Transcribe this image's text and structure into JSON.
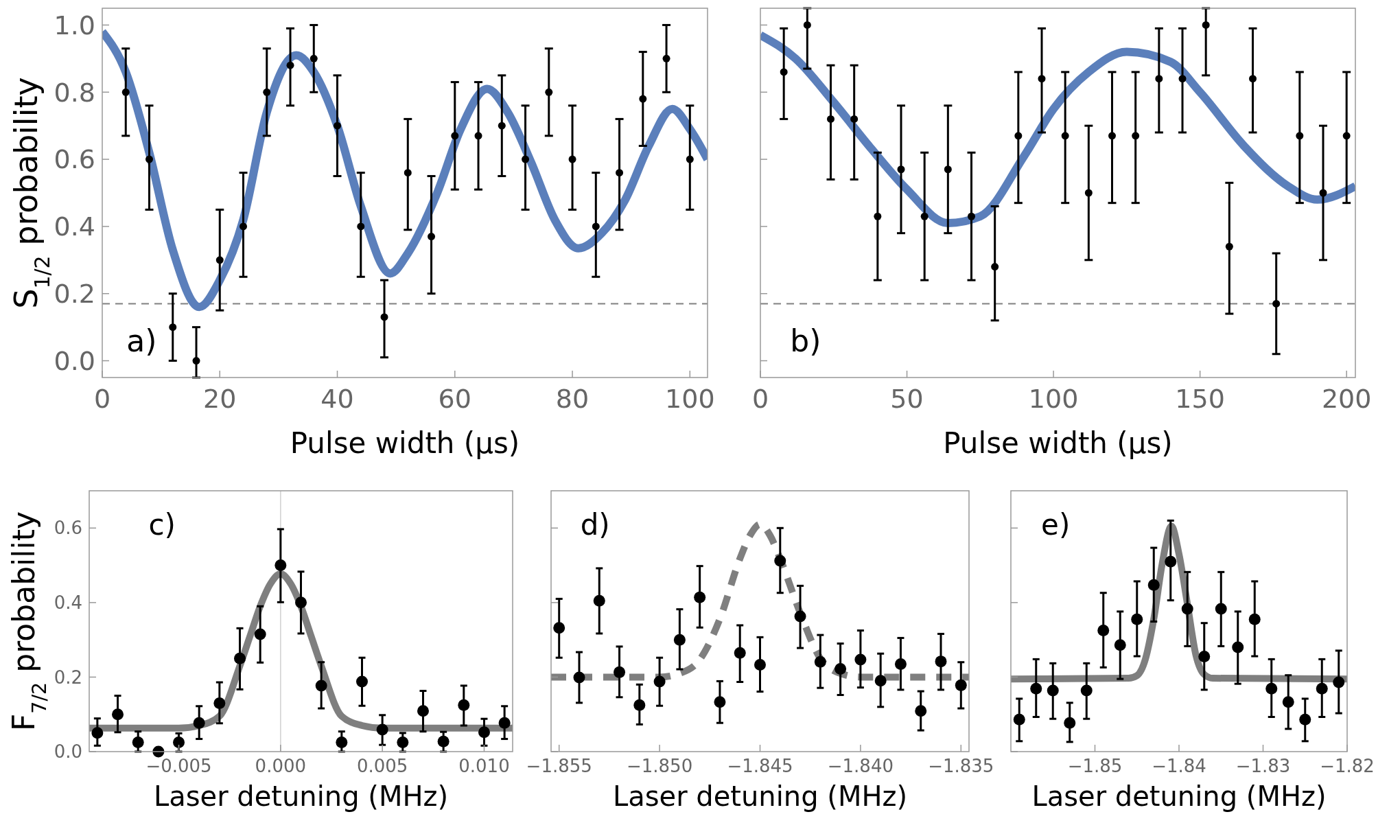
{
  "chart_data": [
    {
      "type": "scatter",
      "xlabel": "Pulse width (μs)",
      "ylabel": "S$_{1/2}$ probability",
      "annotations": [
        "a)"
      ],
      "xlim": [
        0,
        103
      ],
      "ylim": [
        -0.05,
        1.05
      ],
      "xticks": [
        0,
        20,
        40,
        60,
        80,
        100
      ],
      "yticks": [
        {
          "value": 0,
          "label": "0.0"
        },
        {
          "value": 0.2,
          "label": "0.2"
        },
        {
          "value": 0.4,
          "label": "0.4"
        },
        {
          "value": 0.6,
          "label": "0.6"
        },
        {
          "value": 0.8,
          "label": "0.8"
        },
        {
          "value": 1,
          "label": "1.0"
        }
      ],
      "ref_lines": [
        {
          "axis": "y",
          "value": 0.17,
          "color": "#808080",
          "line_style": "dashed"
        }
      ],
      "series": [
        {
          "type": "line",
          "color": "#5b7fbb",
          "x": [
            0,
            4,
            8,
            12,
            16.5,
            20,
            24,
            28,
            33,
            36,
            40,
            44,
            49,
            52,
            57,
            61,
            65.5,
            69,
            73,
            77,
            81,
            85,
            89,
            93,
            97,
            100,
            103
          ],
          "values": [
            0.98,
            0.86,
            0.62,
            0.33,
            0.16,
            0.24,
            0.42,
            0.74,
            0.91,
            0.86,
            0.7,
            0.46,
            0.26,
            0.32,
            0.5,
            0.69,
            0.81,
            0.74,
            0.59,
            0.42,
            0.335,
            0.38,
            0.48,
            0.64,
            0.75,
            0.69,
            0.6
          ]
        },
        {
          "color": "#000000",
          "marker": "circle",
          "x": [
            4,
            8,
            12,
            16,
            20,
            24,
            28,
            32,
            36,
            40,
            44,
            48,
            52,
            56,
            60,
            64,
            68,
            72,
            76,
            80,
            84,
            88,
            92,
            96,
            100
          ],
          "values": [
            0.8,
            0.6,
            0.1,
            0,
            0.3,
            0.4,
            0.8,
            0.88,
            0.9,
            0.7,
            0.4,
            0.13,
            0.56,
            0.37,
            0.67,
            0.67,
            0.7,
            0.6,
            0.8,
            0.6,
            0.4,
            0.56,
            0.78,
            0.9,
            0.6
          ],
          "errors": [
            [
              0.67,
              0.93
            ],
            [
              0.45,
              0.76
            ],
            [
              0.0,
              0.2
            ],
            [
              -0.05,
              0.1
            ],
            [
              0.15,
              0.45
            ],
            [
              0.25,
              0.56
            ],
            [
              0.67,
              0.93
            ],
            [
              0.76,
              0.99
            ],
            [
              0.8,
              1.0
            ],
            [
              0.55,
              0.85
            ],
            [
              0.25,
              0.56
            ],
            [
              0.01,
              0.24
            ],
            [
              0.39,
              0.72
            ],
            [
              0.2,
              0.55
            ],
            [
              0.51,
              0.83
            ],
            [
              0.51,
              0.83
            ],
            [
              0.55,
              0.85
            ],
            [
              0.45,
              0.76
            ],
            [
              0.67,
              0.93
            ],
            [
              0.45,
              0.76
            ],
            [
              0.25,
              0.56
            ],
            [
              0.39,
              0.72
            ],
            [
              0.64,
              0.92
            ],
            [
              0.8,
              1.0
            ],
            [
              0.45,
              0.76
            ]
          ]
        }
      ]
    },
    {
      "type": "scatter",
      "xlabel": "Pulse width (μs)",
      "annotations": [
        "b)"
      ],
      "xlim": [
        0,
        203
      ],
      "ylim": [
        -0.05,
        1.05
      ],
      "tick_labels": "x",
      "xticks": [
        0,
        50,
        100,
        150,
        200
      ],
      "yticks": [
        0,
        0.2,
        0.4,
        0.6,
        0.8,
        1
      ],
      "ref_lines": [
        {
          "axis": "y",
          "value": 0.17,
          "color": "#808080",
          "line_style": "dashed"
        }
      ],
      "series": [
        {
          "type": "line",
          "color": "#5b7fbb",
          "x": [
            0,
            12,
            25,
            38,
            50,
            64,
            75,
            90,
            100,
            112,
            125,
            140,
            150,
            165,
            180,
            190,
            203
          ],
          "values": [
            0.97,
            0.9,
            0.77,
            0.63,
            0.51,
            0.41,
            0.43,
            0.61,
            0.75,
            0.86,
            0.92,
            0.89,
            0.8,
            0.64,
            0.52,
            0.48,
            0.52
          ]
        },
        {
          "color": "#000000",
          "marker": "circle",
          "x": [
            8,
            16,
            24,
            32,
            40,
            48,
            56,
            64,
            72,
            80,
            88,
            96,
            104,
            112,
            120,
            128,
            136,
            144,
            152,
            160,
            168,
            176,
            184,
            192,
            200
          ],
          "values": [
            0.86,
            1,
            0.72,
            0.72,
            0.43,
            0.57,
            0.43,
            0.57,
            0.43,
            0.28,
            0.67,
            0.84,
            0.67,
            0.5,
            0.67,
            0.67,
            0.84,
            0.84,
            1,
            0.34,
            0.84,
            0.17,
            0.67,
            0.5,
            0.67
          ],
          "errors": [
            [
              0.72,
              0.99
            ],
            [
              0.87,
              1.05
            ],
            [
              0.54,
              0.88
            ],
            [
              0.54,
              0.88
            ],
            [
              0.24,
              0.62
            ],
            [
              0.38,
              0.76
            ],
            [
              0.24,
              0.62
            ],
            [
              0.38,
              0.76
            ],
            [
              0.24,
              0.62
            ],
            [
              0.12,
              0.46
            ],
            [
              0.47,
              0.86
            ],
            [
              0.68,
              0.99
            ],
            [
              0.47,
              0.86
            ],
            [
              0.3,
              0.7
            ],
            [
              0.47,
              0.86
            ],
            [
              0.47,
              0.86
            ],
            [
              0.68,
              0.99
            ],
            [
              0.68,
              0.99
            ],
            [
              0.85,
              1.05
            ],
            [
              0.14,
              0.53
            ],
            [
              0.68,
              0.99
            ],
            [
              0.02,
              0.32
            ],
            [
              0.47,
              0.86
            ],
            [
              0.3,
              0.7
            ],
            [
              0.47,
              0.86
            ]
          ]
        }
      ]
    },
    {
      "type": "scatter",
      "xlabel": "Laser detuning (MHz)",
      "ylabel": "F$_{7/2}$ probability",
      "annotations": [
        "c)"
      ],
      "xlim": [
        -0.0094,
        0.0114
      ],
      "ylim": [
        0,
        0.7
      ],
      "xticks": [
        {
          "value": -0.005,
          "label": "−0.005"
        },
        {
          "value": 0,
          "label": "0.000"
        },
        {
          "value": 0.005,
          "label": "0.005"
        },
        {
          "value": 0.01,
          "label": "0.010"
        }
      ],
      "yticks": [
        {
          "value": 0,
          "label": "0.0"
        },
        {
          "value": 0.2,
          "label": "0.2"
        },
        {
          "value": 0.4,
          "label": "0.4"
        },
        {
          "value": 0.6,
          "label": "0.6"
        }
      ],
      "ref_lines": [
        {
          "axis": "x",
          "value": 0,
          "color": "#d0d0d0",
          "line_style": "solid"
        }
      ],
      "series": [
        {
          "type": "line",
          "color": "#7f7f7f",
          "x": [
            -0.0094,
            -0.005,
            -0.004,
            -0.003,
            -0.002,
            -0.0015,
            -0.001,
            -0.0005,
            0,
            0.0005,
            0.001,
            0.0015,
            0.002,
            0.003,
            0.004,
            0.005,
            0.0114
          ],
          "values": [
            0.063,
            0.063,
            0.07,
            0.095,
            0.23,
            0.31,
            0.39,
            0.45,
            0.477,
            0.45,
            0.39,
            0.31,
            0.23,
            0.095,
            0.07,
            0.063,
            0.063
          ]
        },
        {
          "color": "#000000",
          "marker": "circle",
          "x": [
            -0.009,
            -0.008,
            -0.007,
            -0.006,
            -0.005,
            -0.004,
            -0.003,
            -0.002,
            -0.001,
            0,
            0.001,
            0.002,
            0.003,
            0.004,
            0.005,
            0.006,
            0.007,
            0.008,
            0.009,
            0.01,
            0.011
          ],
          "values": [
            0.05,
            0.1,
            0.025,
            0,
            0.025,
            0.077,
            0.13,
            0.25,
            0.315,
            0.5,
            0.4,
            0.177,
            0.025,
            0.188,
            0.059,
            0.025,
            0.109,
            0.027,
            0.125,
            0.052,
            0.077
          ],
          "errors": [
            [
              0.016,
              0.089
            ],
            [
              0.052,
              0.15
            ],
            [
              0,
              0.054
            ],
            null,
            [
              0,
              0.049
            ],
            [
              0.034,
              0.122
            ],
            [
              0.076,
              0.186
            ],
            [
              0.167,
              0.331
            ],
            [
              0.239,
              0.39
            ],
            [
              0.401,
              0.597
            ],
            [
              0.317,
              0.483
            ],
            [
              0.116,
              0.24
            ],
            [
              0,
              0.054
            ],
            [
              0.123,
              0.252
            ],
            [
              0.018,
              0.098
            ],
            [
              0,
              0.05
            ],
            [
              0.054,
              0.163
            ],
            [
              0,
              0.053
            ],
            [
              0.07,
              0.177
            ],
            [
              0.016,
              0.088
            ],
            [
              0.034,
              0.122
            ]
          ]
        }
      ]
    },
    {
      "type": "scatter",
      "xlabel": "Laser detuning (MHz)",
      "annotations": [
        "d)"
      ],
      "xlim": [
        -1.8554,
        -1.8346
      ],
      "ylim": [
        0,
        0.7
      ],
      "tick_labels": "x",
      "xticks": [
        {
          "value": -1.855,
          "label": "−1.855"
        },
        {
          "value": -1.85,
          "label": "−1.850"
        },
        {
          "value": -1.845,
          "label": "−1.845"
        },
        {
          "value": -1.84,
          "label": "−1.840"
        },
        {
          "value": -1.835,
          "label": "−1.835"
        }
      ],
      "yticks": [
        0,
        0.2,
        0.4,
        0.6
      ],
      "series": [
        {
          "type": "line",
          "color": "#7f7f7f",
          "line_style": "dashed",
          "x": [
            -1.8554,
            -1.85,
            -1.849,
            -1.848,
            -1.847,
            -1.846,
            -1.8455,
            -1.845,
            -1.8445,
            -1.844,
            -1.843,
            -1.842,
            -1.841,
            -1.84,
            -1.8346
          ],
          "values": [
            0.2,
            0.2,
            0.21,
            0.247,
            0.356,
            0.518,
            0.58,
            0.61,
            0.58,
            0.518,
            0.372,
            0.25,
            0.21,
            0.2,
            0.2
          ]
        },
        {
          "color": "#000000",
          "marker": "circle",
          "x": [
            -1.855,
            -1.854,
            -1.853,
            -1.852,
            -1.851,
            -1.85,
            -1.849,
            -1.848,
            -1.847,
            -1.846,
            -1.845,
            -1.844,
            -1.843,
            -1.842,
            -1.841,
            -1.84,
            -1.839,
            -1.838,
            -1.837,
            -1.836,
            -1.835
          ],
          "values": [
            0.332,
            0.199,
            0.405,
            0.213,
            0.125,
            0.188,
            0.3,
            0.414,
            0.133,
            0.265,
            0.233,
            0.512,
            0.363,
            0.241,
            0.222,
            0.247,
            0.19,
            0.235,
            0.109,
            0.242,
            0.178
          ],
          "errors": [
            [
              0.252,
              0.41
            ],
            [
              0.131,
              0.267
            ],
            [
              0.317,
              0.492
            ],
            [
              0.146,
              0.282
            ],
            [
              0.073,
              0.18
            ],
            [
              0.123,
              0.252
            ],
            [
              0.221,
              0.382
            ],
            [
              0.333,
              0.498
            ],
            [
              0.077,
              0.189
            ],
            [
              0.187,
              0.339
            ],
            [
              0.161,
              0.307
            ],
            [
              0.426,
              0.6
            ],
            [
              0.278,
              0.445
            ],
            [
              0.171,
              0.313
            ],
            [
              0.152,
              0.29
            ],
            [
              0.172,
              0.325
            ],
            [
              0.12,
              0.263
            ],
            [
              0.166,
              0.305
            ],
            [
              0.057,
              0.162
            ],
            [
              0.166,
              0.316
            ],
            [
              0.116,
              0.24
            ]
          ]
        }
      ]
    },
    {
      "type": "scatter",
      "xlabel": "Laser detuning (MHz)",
      "annotations": [
        "e)"
      ],
      "xlim": [
        -1.86,
        -1.82
      ],
      "ylim": [
        0,
        0.7
      ],
      "tick_labels": "x",
      "xticks": [
        {
          "value": -1.85,
          "label": "−1.85"
        },
        {
          "value": -1.84,
          "label": "−1.84"
        },
        {
          "value": -1.83,
          "label": "−1.83"
        },
        {
          "value": -1.82,
          "label": "−1.82"
        }
      ],
      "yticks": [
        0,
        0.2,
        0.4,
        0.6
      ],
      "series": [
        {
          "type": "line",
          "color": "#7f7f7f",
          "x": [
            -1.86,
            -1.846,
            -1.845,
            -1.844,
            -1.843,
            -1.842,
            -1.8409,
            -1.84,
            -1.839,
            -1.838,
            -1.837,
            -1.836,
            -1.82
          ],
          "values": [
            0.195,
            0.197,
            0.204,
            0.248,
            0.356,
            0.504,
            0.605,
            0.53,
            0.396,
            0.26,
            0.207,
            0.197,
            0.195
          ]
        },
        {
          "color": "#000000",
          "marker": "circle",
          "x": [
            -1.859,
            -1.857,
            -1.855,
            -1.853,
            -1.851,
            -1.849,
            -1.847,
            -1.845,
            -1.843,
            -1.841,
            -1.839,
            -1.837,
            -1.835,
            -1.833,
            -1.831,
            -1.829,
            -1.827,
            -1.825,
            -1.823,
            -1.821
          ],
          "values": [
            0.086,
            0.169,
            0.164,
            0.077,
            0.164,
            0.325,
            0.286,
            0.355,
            0.447,
            0.51,
            0.383,
            0.255,
            0.383,
            0.28,
            0.355,
            0.169,
            0.133,
            0.086,
            0.169,
            0.186
          ],
          "errors": [
            [
              0.028,
              0.142
            ],
            [
              0.093,
              0.248
            ],
            [
              0.088,
              0.237
            ],
            [
              0.026,
              0.131
            ],
            [
              0.088,
              0.237
            ],
            [
              0.226,
              0.426
            ],
            [
              0.195,
              0.376
            ],
            [
              0.256,
              0.457
            ],
            [
              0.349,
              0.547
            ],
            [
              0.406,
              0.62
            ],
            [
              0.283,
              0.482
            ],
            [
              0.166,
              0.345
            ],
            [
              0.283,
              0.482
            ],
            [
              0.182,
              0.376
            ],
            [
              0.256,
              0.457
            ],
            [
              0.093,
              0.248
            ],
            [
              0.061,
              0.205
            ],
            [
              0.028,
              0.142
            ],
            [
              0.093,
              0.248
            ],
            [
              0.103,
              0.271
            ]
          ]
        }
      ]
    }
  ]
}
